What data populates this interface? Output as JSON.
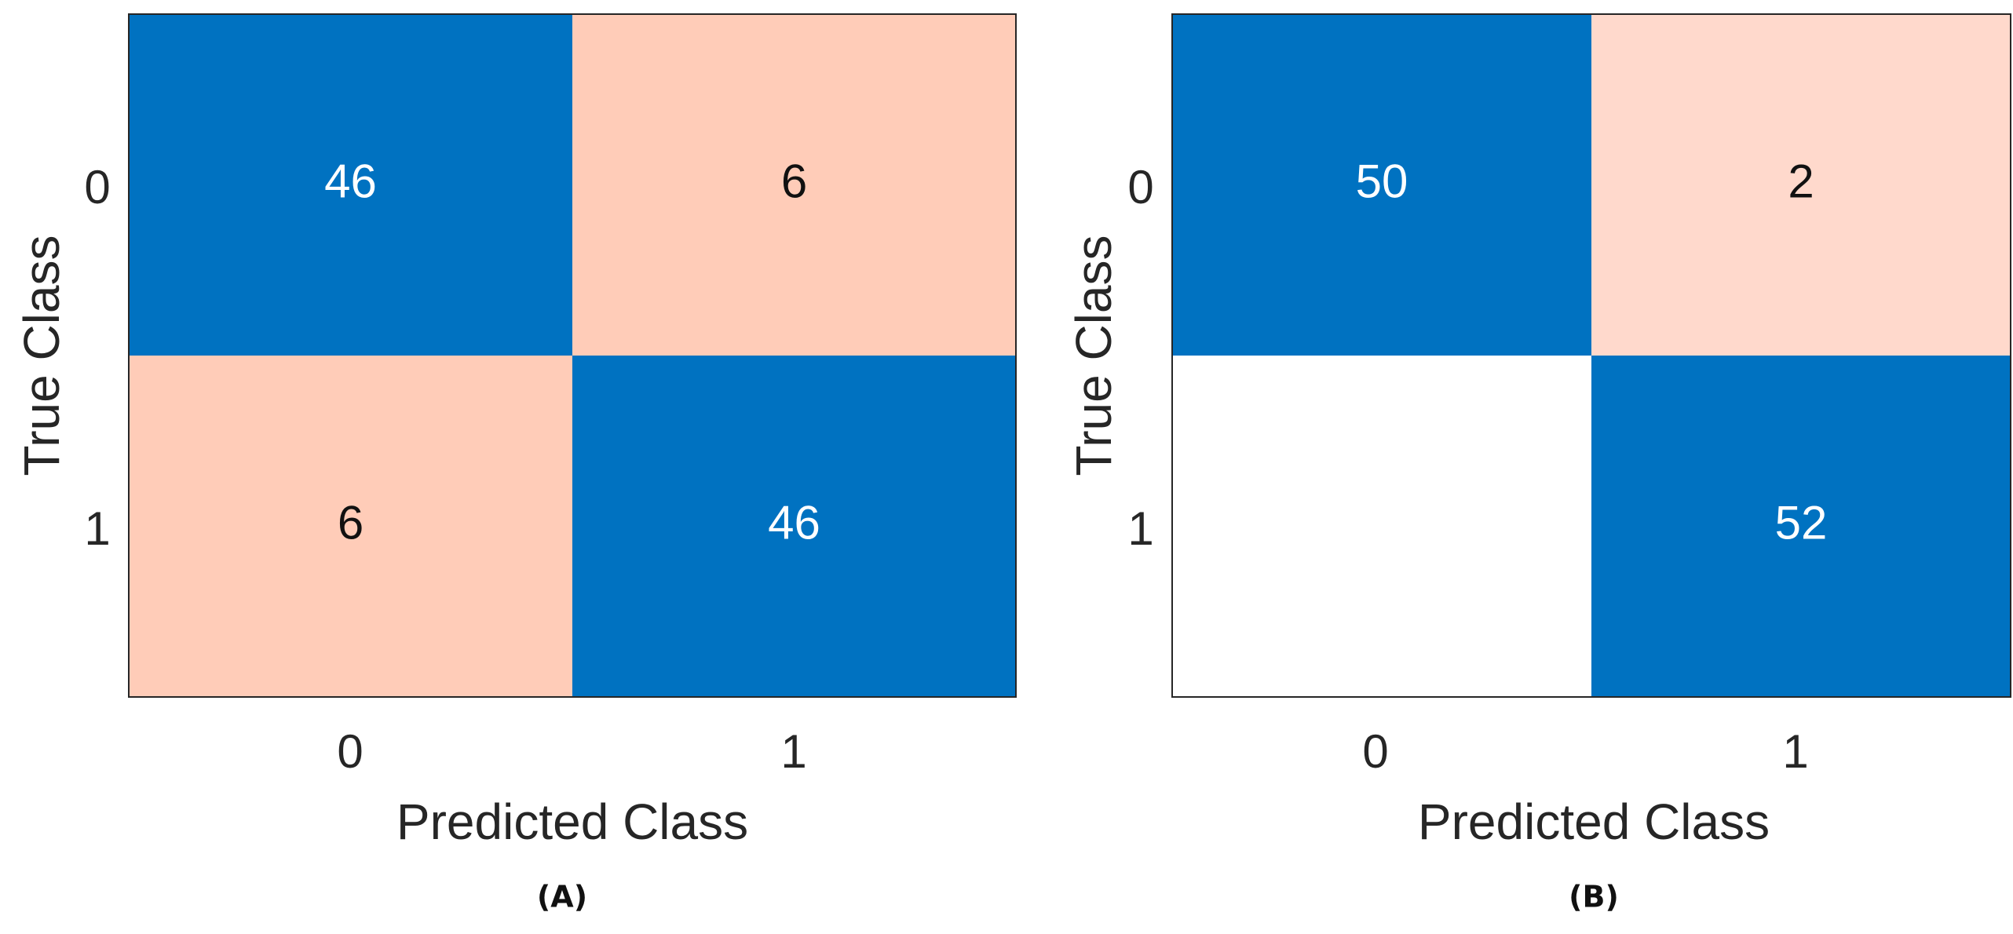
{
  "colors": {
    "correct": "#0072C1",
    "error_a": "#FFCCB8",
    "error_b": "#FFD9CC",
    "empty": "#FFFFFF",
    "text_on_dark": "#FFFFFF",
    "text_on_light": "#111111",
    "axes": "#262626"
  },
  "chart_data": [
    {
      "type": "heatmap",
      "caption": "(A)",
      "xlabel": "Predicted Class",
      "ylabel": "True Class",
      "x_categories": [
        "0",
        "1"
      ],
      "y_categories": [
        "0",
        "1"
      ],
      "matrix": [
        [
          46,
          6
        ],
        [
          6,
          46
        ]
      ],
      "grid": false,
      "legend": "none"
    },
    {
      "type": "heatmap",
      "caption": "(B)",
      "xlabel": "Predicted Class",
      "ylabel": "True Class",
      "x_categories": [
        "0",
        "1"
      ],
      "y_categories": [
        "0",
        "1"
      ],
      "matrix": [
        [
          50,
          2
        ],
        [
          null,
          52
        ]
      ],
      "grid": false,
      "legend": "none"
    }
  ]
}
